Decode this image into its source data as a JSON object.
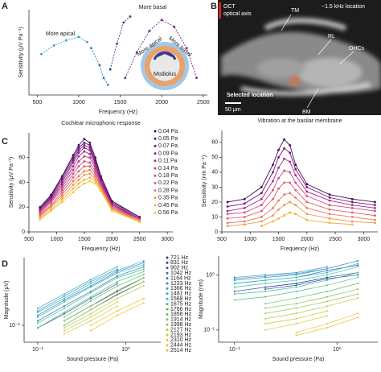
{
  "panel_labels": [
    "A",
    "B",
    "C",
    "D"
  ],
  "image_panel": {
    "labels": [
      "OCT",
      "optical axis",
      "~1.5 kHz location",
      "TM",
      "RL",
      "OHCs",
      "Selected location",
      "BM",
      "50 μm"
    ]
  },
  "chart_data": [
    {
      "type": "line",
      "line_style": "dashed",
      "xlabel": "Frequency (Hz)",
      "ylabel": "Sensitivity (μV Pa⁻¹)",
      "xlim": [
        400,
        2550
      ],
      "xticks": [
        500,
        1000,
        1500,
        2000,
        2500
      ],
      "ylim": [
        0,
        100
      ],
      "annotations": [
        "More apical",
        "More basal"
      ],
      "inset_labels": [
        "More apical",
        "More basal",
        "Modiolus"
      ],
      "series": [
        {
          "color": "#2aa5c9",
          "x": [
            550,
            700,
            850,
            1000,
            1100
          ],
          "values": [
            48,
            58,
            64,
            68,
            62
          ]
        },
        {
          "color": "#2a7fc2",
          "x": [
            1150,
            1250,
            1300,
            1350
          ],
          "values": [
            55,
            35,
            20,
            12
          ]
        },
        {
          "color": "#2d3e8c",
          "x": [
            1380,
            1460,
            1540,
            1620
          ],
          "values": [
            30,
            60,
            85,
            92
          ]
        },
        {
          "color": "#6b2a8c",
          "x": [
            1560,
            1700,
            1850,
            2000,
            2150,
            2300,
            2420
          ],
          "values": [
            20,
            50,
            75,
            88,
            80,
            55,
            20
          ]
        }
      ]
    },
    {
      "type": "line",
      "title": "Cochlear microphonic response",
      "xlabel": "Frequency (Hz)",
      "ylabel": "Sensitivity (μV Pa⁻¹)",
      "xlim": [
        500,
        3100
      ],
      "xticks": [
        500,
        1000,
        1500,
        2000,
        2500,
        3000
      ],
      "ylim": [
        0,
        80
      ],
      "yticks": [
        0,
        20,
        40,
        60
      ],
      "legend": "upper right",
      "x": [
        700,
        900,
        1100,
        1300,
        1400,
        1500,
        1600,
        1700,
        1800,
        2000,
        2500
      ],
      "series": [
        {
          "name": "0.04 Pa",
          "color": "#3b0f4f",
          "values": [
            20,
            30,
            45,
            62,
            70,
            75,
            72,
            60,
            45,
            25,
            12
          ]
        },
        {
          "name": "0.05 Pa",
          "color": "#5a0f6e",
          "values": [
            19,
            29,
            44,
            60,
            68,
            72,
            70,
            58,
            44,
            24,
            12
          ]
        },
        {
          "name": "0.07 Pa",
          "color": "#7a1080",
          "values": [
            18,
            28,
            42,
            58,
            66,
            70,
            68,
            56,
            42,
            23,
            11
          ]
        },
        {
          "name": "0.09 Pa",
          "color": "#931a8a",
          "values": [
            18,
            27,
            40,
            56,
            64,
            68,
            66,
            55,
            41,
            22,
            11
          ]
        },
        {
          "name": "0.11 Pa",
          "color": "#a82a8a",
          "values": [
            17,
            26,
            38,
            53,
            61,
            65,
            63,
            53,
            40,
            22,
            10
          ]
        },
        {
          "name": "0.14 Pa",
          "color": "#bd3a85",
          "values": [
            16,
            25,
            36,
            50,
            57,
            61,
            60,
            51,
            39,
            21,
            10
          ]
        },
        {
          "name": "0.18 Pa",
          "color": "#cf4d7c",
          "values": [
            15,
            24,
            34,
            47,
            53,
            57,
            56,
            49,
            38,
            20,
            10
          ]
        },
        {
          "name": "0.22 Pa",
          "color": "#dd6270",
          "values": [
            14,
            22,
            32,
            44,
            49,
            53,
            53,
            47,
            37,
            20,
            9
          ]
        },
        {
          "name": "0.28 Pa",
          "color": "#e87a60",
          "values": [
            13,
            21,
            30,
            41,
            45,
            49,
            50,
            45,
            36,
            19,
            9
          ]
        },
        {
          "name": "0.35 Pa",
          "color": "#f0954e",
          "values": [
            12,
            20,
            28,
            38,
            42,
            46,
            47,
            43,
            35,
            18,
            9
          ]
        },
        {
          "name": "0.45 Pa",
          "color": "#f5b03d",
          "values": [
            11,
            18,
            26,
            35,
            39,
            42,
            44,
            41,
            34,
            18,
            8
          ]
        },
        {
          "name": "0.56 Pa",
          "color": "#f7c831",
          "values": [
            10,
            17,
            24,
            32,
            36,
            39,
            41,
            39,
            33,
            17,
            8
          ]
        }
      ]
    },
    {
      "type": "line",
      "title": "Vibration at the basilar membrane",
      "xlabel": "Frequency (Hz)",
      "ylabel": "Sensitivity (nm Pa⁻¹)",
      "xlim": [
        500,
        3250
      ],
      "xticks": [
        500,
        1000,
        1500,
        2000,
        2500,
        3000
      ],
      "ylim": [
        0,
        68
      ],
      "yticks": [
        0,
        10,
        20,
        30,
        40,
        50,
        60
      ],
      "x": [
        600,
        900,
        1200,
        1400,
        1500,
        1600,
        1700,
        1800,
        2000,
        2400,
        2800,
        3200
      ],
      "series": [
        {
          "color": "#3b0f4f",
          "values": [
            20,
            22,
            30,
            45,
            55,
            62,
            58,
            45,
            32,
            25,
            22,
            20
          ]
        },
        {
          "color": "#7a1080",
          "values": [
            17,
            19,
            26,
            40,
            50,
            56,
            53,
            42,
            30,
            23,
            20,
            18
          ]
        },
        {
          "color": "#a82a8a",
          "values": [
            14,
            16,
            22,
            34,
            43,
            49,
            47,
            38,
            27,
            21,
            18,
            16
          ]
        },
        {
          "color": "#cf4d7c",
          "values": [
            12,
            13,
            18,
            28,
            36,
            41,
            40,
            33,
            24,
            18,
            16,
            14
          ]
        },
        {
          "color": "#dd6270",
          "values": [
            9,
            10,
            14,
            22,
            29,
            33,
            33,
            28,
            20,
            15,
            13,
            11
          ]
        },
        {
          "color": "#e87a60",
          "values": [
            6,
            7,
            10,
            16,
            21,
            25,
            26,
            23,
            16,
            12,
            10,
            8
          ]
        },
        {
          "color": "#f0954e",
          "values": [
            4,
            5,
            7,
            11,
            15,
            18,
            20,
            18,
            12,
            9,
            7,
            6
          ]
        },
        {
          "color": "#f5b03d",
          "values": [
            null,
            null,
            4,
            7,
            9,
            11,
            13,
            12,
            8,
            6,
            5,
            null
          ]
        }
      ]
    },
    {
      "type": "line",
      "xscale": "log",
      "yscale": "log",
      "xlabel": "Sound pressure (Pa)",
      "ylabel": "Magnitude (μV)",
      "xlim": [
        0.07,
        2.5
      ],
      "xticks": [
        {
          "value": 0.1,
          "label": "10⁻¹"
        },
        {
          "value": 1,
          "label": "10⁰"
        }
      ],
      "ylim": [
        0.05,
        1.6
      ],
      "yticks": [
        {
          "value": 0.1,
          "label": "10⁻¹"
        }
      ],
      "legend": "right",
      "x": [
        0.1,
        0.2,
        0.4,
        0.8,
        1.6
      ],
      "series": [
        {
          "name": "721 Hz",
          "color": "#2c3e8f",
          "values": [
            null,
            0.12,
            0.22,
            0.4,
            0.7
          ]
        },
        {
          "name": "831 Hz",
          "color": "#34489a",
          "values": [
            null,
            0.1,
            0.19,
            0.35,
            0.6
          ]
        },
        {
          "name": "902 Hz",
          "color": "#3a56a6",
          "values": [
            0.09,
            0.16,
            0.3,
            0.55,
            null
          ]
        },
        {
          "name": "1042 Hz",
          "color": "#3c68b2",
          "values": [
            0.12,
            0.22,
            0.4,
            0.75,
            1.1
          ]
        },
        {
          "name": "1164 Hz",
          "color": "#3a7dbd",
          "values": [
            0.15,
            0.28,
            0.5,
            0.9,
            1.3
          ]
        },
        {
          "name": "1233 Hz",
          "color": "#3592c5",
          "values": [
            0.18,
            0.33,
            0.6,
            1.0,
            null
          ]
        },
        {
          "name": "1366 Hz",
          "color": "#30a5c8",
          "values": [
            0.2,
            0.36,
            0.65,
            1.1,
            null
          ]
        },
        {
          "name": "1481 Hz",
          "color": "#2fb5c0",
          "values": [
            0.17,
            0.3,
            0.55,
            0.95,
            1.4
          ]
        },
        {
          "name": "1568 Hz",
          "color": "#31bfae",
          "values": [
            0.14,
            0.26,
            0.48,
            0.85,
            1.2
          ]
        },
        {
          "name": "1675 Hz",
          "color": "#38c297",
          "values": [
            0.11,
            0.2,
            0.38,
            0.7,
            1.0
          ]
        },
        {
          "name": "1766 Hz",
          "color": "#48c17f",
          "values": [
            0.09,
            0.17,
            0.32,
            0.6,
            0.9
          ]
        },
        {
          "name": "1856 Hz",
          "color": "#60c16a",
          "values": [
            null,
            0.14,
            0.27,
            0.5,
            0.8
          ]
        },
        {
          "name": "1914 Hz",
          "color": "#7cc45a",
          "values": [
            null,
            0.12,
            0.22,
            0.42,
            0.7
          ]
        },
        {
          "name": "1998 Hz",
          "color": "#98c84a",
          "values": [
            null,
            0.1,
            0.19,
            0.36,
            0.6
          ]
        },
        {
          "name": "2127 Hz",
          "color": "#b1cb40",
          "values": [
            null,
            0.09,
            0.16,
            0.3,
            0.5
          ]
        },
        {
          "name": "2193 Hz",
          "color": "#c6cd3a",
          "values": [
            null,
            0.08,
            0.14,
            0.26,
            null
          ]
        },
        {
          "name": "2310 Hz",
          "color": "#d8cc35",
          "values": [
            null,
            0.07,
            0.12,
            0.22,
            null
          ]
        },
        {
          "name": "2444 Hz",
          "color": "#e6c532",
          "values": [
            null,
            null,
            0.1,
            0.18,
            0.3
          ]
        },
        {
          "name": "2514 Hz",
          "color": "#f0bb2e",
          "values": [
            null,
            null,
            0.08,
            0.15,
            0.25
          ]
        }
      ]
    },
    {
      "type": "line",
      "xscale": "log",
      "yscale": "log",
      "xlabel": "Sound pressure (Pa)",
      "ylabel": "Magnitude (nm)",
      "xlim": [
        0.07,
        2.5
      ],
      "xticks": [
        {
          "value": 0.1,
          "label": "10⁻¹"
        },
        {
          "value": 1,
          "label": "10⁰"
        }
      ],
      "ylim": [
        0.06,
        2.2
      ],
      "yticks": [
        {
          "value": 0.1,
          "label": "10⁻¹"
        },
        {
          "value": 1,
          "label": "10⁰"
        }
      ],
      "x": [
        0.1,
        0.2,
        0.4,
        0.8,
        1.6
      ],
      "series": [
        {
          "color": "#2c3e8f",
          "values": [
            null,
            0.6,
            0.7,
            0.9,
            1.1
          ]
        },
        {
          "color": "#34489a",
          "values": [
            null,
            0.55,
            0.65,
            0.85,
            1.0
          ]
        },
        {
          "color": "#3a56a6",
          "values": [
            0.5,
            0.6,
            0.7,
            0.9,
            null
          ]
        },
        {
          "color": "#3c68b2",
          "values": [
            0.7,
            0.8,
            0.9,
            1.2,
            1.5
          ]
        },
        {
          "color": "#3a7dbd",
          "values": [
            0.8,
            0.9,
            1.0,
            1.3,
            1.8
          ]
        },
        {
          "color": "#3592c5",
          "values": [
            0.9,
            1.0,
            1.1,
            1.4,
            null
          ]
        },
        {
          "color": "#30a5c8",
          "values": [
            0.85,
            0.95,
            1.05,
            1.3,
            null
          ]
        },
        {
          "color": "#2fb5c0",
          "values": [
            0.7,
            0.8,
            0.9,
            1.1,
            1.6
          ]
        },
        {
          "color": "#31bfae",
          "values": [
            0.6,
            0.7,
            0.8,
            1.0,
            1.4
          ]
        },
        {
          "color": "#38c297",
          "values": [
            0.45,
            0.5,
            0.6,
            0.8,
            1.1
          ]
        },
        {
          "color": "#48c17f",
          "values": [
            0.35,
            0.4,
            0.5,
            0.65,
            0.9
          ]
        },
        {
          "color": "#60c16a",
          "values": [
            null,
            0.3,
            0.38,
            0.5,
            0.7
          ]
        },
        {
          "color": "#7cc45a",
          "values": [
            null,
            0.25,
            0.3,
            0.4,
            0.55
          ]
        },
        {
          "color": "#98c84a",
          "values": [
            null,
            0.2,
            0.25,
            0.33,
            0.45
          ]
        },
        {
          "color": "#b1cb40",
          "values": [
            null,
            0.16,
            0.2,
            0.27,
            0.38
          ]
        },
        {
          "color": "#c6cd3a",
          "values": [
            null,
            0.13,
            0.16,
            0.22,
            null
          ]
        },
        {
          "color": "#d8cc35",
          "values": [
            null,
            0.1,
            0.13,
            0.18,
            null
          ]
        },
        {
          "color": "#e6c532",
          "values": [
            null,
            null,
            0.09,
            0.13,
            0.2
          ]
        },
        {
          "color": "#f0bb2e",
          "values": [
            null,
            null,
            0.08,
            0.11,
            0.17
          ]
        }
      ]
    }
  ]
}
